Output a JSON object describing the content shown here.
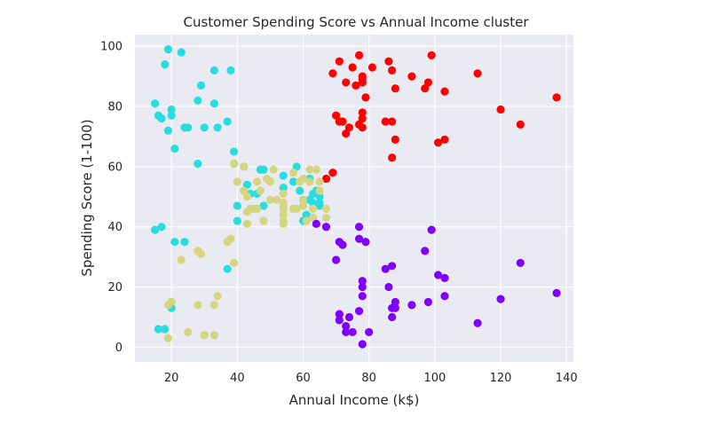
{
  "chart_data": {
    "type": "scatter",
    "title": "Customer Spending Score vs Annual Income cluster",
    "xlabel": "Annual Income (k$)",
    "ylabel": "Spending Score (1-100)",
    "xlim": [
      8.9,
      142.1
    ],
    "ylim": [
      -4.9,
      103.9
    ],
    "xticks": [
      20,
      40,
      60,
      80,
      100,
      120,
      140
    ],
    "yticks": [
      0,
      20,
      40,
      60,
      80,
      100
    ],
    "grid": true,
    "background": "#eaeaf2",
    "series": [
      {
        "color": "#ff0000",
        "points": [
          [
            69,
            91
          ],
          [
            70,
            77
          ],
          [
            71,
            95
          ],
          [
            71,
            75
          ],
          [
            72,
            75
          ],
          [
            73,
            71
          ],
          [
            73,
            88
          ],
          [
            74,
            73
          ],
          [
            75,
            93
          ],
          [
            76,
            87
          ],
          [
            77,
            97
          ],
          [
            77,
            74
          ],
          [
            78,
            90
          ],
          [
            78,
            88
          ],
          [
            78,
            76
          ],
          [
            78,
            89
          ],
          [
            78,
            78
          ],
          [
            78,
            73
          ],
          [
            79,
            83
          ],
          [
            81,
            93
          ],
          [
            85,
            75
          ],
          [
            86,
            95
          ],
          [
            87,
            63
          ],
          [
            87,
            75
          ],
          [
            87,
            92
          ],
          [
            88,
            86
          ],
          [
            88,
            69
          ],
          [
            93,
            90
          ],
          [
            97,
            86
          ],
          [
            98,
            88
          ],
          [
            99,
            97
          ],
          [
            101,
            68
          ],
          [
            103,
            85
          ],
          [
            103,
            69
          ],
          [
            113,
            91
          ],
          [
            120,
            79
          ],
          [
            126,
            74
          ],
          [
            137,
            83
          ],
          [
            67,
            56
          ],
          [
            69,
            58
          ]
        ]
      },
      {
        "color": "#28dde0",
        "points": [
          [
            15,
            39
          ],
          [
            15,
            81
          ],
          [
            16,
            77
          ],
          [
            16,
            6
          ],
          [
            17,
            40
          ],
          [
            17,
            76
          ],
          [
            18,
            6
          ],
          [
            18,
            94
          ],
          [
            19,
            72
          ],
          [
            19,
            99
          ],
          [
            20,
            15
          ],
          [
            20,
            77
          ],
          [
            20,
            13
          ],
          [
            20,
            79
          ],
          [
            21,
            35
          ],
          [
            21,
            66
          ],
          [
            23,
            98
          ],
          [
            24,
            35
          ],
          [
            24,
            73
          ],
          [
            25,
            73
          ],
          [
            28,
            82
          ],
          [
            28,
            61
          ],
          [
            29,
            87
          ],
          [
            30,
            73
          ],
          [
            33,
            92
          ],
          [
            33,
            81
          ],
          [
            34,
            73
          ],
          [
            37,
            26
          ],
          [
            37,
            75
          ],
          [
            38,
            92
          ],
          [
            39,
            61
          ],
          [
            39,
            65
          ],
          [
            40,
            42
          ],
          [
            40,
            47
          ],
          [
            42,
            60
          ],
          [
            43,
            54
          ],
          [
            44,
            51
          ],
          [
            46,
            51
          ],
          [
            47,
            59
          ],
          [
            48,
            47
          ],
          [
            48,
            59
          ],
          [
            54,
            53
          ],
          [
            54,
            57
          ],
          [
            57,
            55
          ],
          [
            58,
            60
          ],
          [
            59,
            52
          ],
          [
            60,
            49
          ],
          [
            60,
            42
          ],
          [
            61,
            44
          ],
          [
            62,
            49
          ],
          [
            62,
            56
          ],
          [
            63,
            51
          ],
          [
            63,
            48
          ],
          [
            63,
            43
          ],
          [
            64,
            52
          ],
          [
            65,
            48
          ],
          [
            65,
            50
          ],
          [
            65,
            47
          ]
        ]
      },
      {
        "color": "#d4d67f",
        "points": [
          [
            19,
            3
          ],
          [
            19,
            14
          ],
          [
            20,
            15
          ],
          [
            23,
            29
          ],
          [
            25,
            5
          ],
          [
            28,
            14
          ],
          [
            28,
            32
          ],
          [
            29,
            31
          ],
          [
            30,
            4
          ],
          [
            33,
            4
          ],
          [
            33,
            14
          ],
          [
            34,
            17
          ],
          [
            37,
            35
          ],
          [
            38,
            36
          ],
          [
            39,
            28
          ],
          [
            39,
            61
          ],
          [
            40,
            55
          ],
          [
            42,
            52
          ],
          [
            42,
            60
          ],
          [
            43,
            45
          ],
          [
            43,
            41
          ],
          [
            43,
            50
          ],
          [
            44,
            46
          ],
          [
            45,
            46
          ],
          [
            46,
            46
          ],
          [
            46,
            55
          ],
          [
            47,
            52
          ],
          [
            48,
            42
          ],
          [
            49,
            56
          ],
          [
            50,
            49
          ],
          [
            50,
            55
          ],
          [
            51,
            59
          ],
          [
            52,
            49
          ],
          [
            54,
            41
          ],
          [
            54,
            42
          ],
          [
            54,
            47
          ],
          [
            54,
            48
          ],
          [
            54,
            51
          ],
          [
            54,
            44
          ],
          [
            54,
            46
          ],
          [
            57,
            46
          ],
          [
            57,
            58
          ],
          [
            58,
            46
          ],
          [
            59,
            55
          ],
          [
            60,
            49
          ],
          [
            60,
            56
          ],
          [
            60,
            47
          ],
          [
            61,
            42
          ],
          [
            62,
            59
          ],
          [
            62,
            55
          ],
          [
            63,
            46
          ],
          [
            63,
            43
          ],
          [
            64,
            59
          ],
          [
            65,
            52
          ],
          [
            65,
            55
          ],
          [
            67,
            43
          ],
          [
            67,
            46
          ]
        ]
      },
      {
        "color": "#8000ff",
        "points": [
          [
            64,
            41
          ],
          [
            67,
            40
          ],
          [
            70,
            29
          ],
          [
            71,
            35
          ],
          [
            71,
            11
          ],
          [
            71,
            9
          ],
          [
            72,
            34
          ],
          [
            73,
            5
          ],
          [
            73,
            7
          ],
          [
            74,
            10
          ],
          [
            75,
            5
          ],
          [
            77,
            12
          ],
          [
            77,
            36
          ],
          [
            77,
            40
          ],
          [
            78,
            22
          ],
          [
            78,
            17
          ],
          [
            78,
            20
          ],
          [
            78,
            1
          ],
          [
            79,
            35
          ],
          [
            80,
            5
          ],
          [
            85,
            26
          ],
          [
            86,
            20
          ],
          [
            87,
            10
          ],
          [
            87,
            27
          ],
          [
            87,
            13
          ],
          [
            88,
            13
          ],
          [
            88,
            15
          ],
          [
            93,
            14
          ],
          [
            97,
            32
          ],
          [
            98,
            15
          ],
          [
            99,
            39
          ],
          [
            101,
            24
          ],
          [
            103,
            17
          ],
          [
            103,
            23
          ],
          [
            113,
            8
          ],
          [
            120,
            16
          ],
          [
            126,
            28
          ],
          [
            137,
            18
          ]
        ]
      }
    ]
  }
}
